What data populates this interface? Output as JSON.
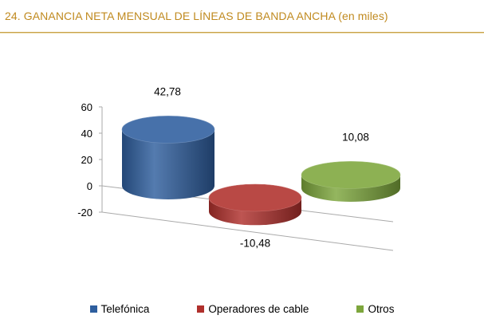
{
  "title": "24. GANANCIA NETA MENSUAL DE LÍNEAS DE BANDA ANCHA (en miles)",
  "colors": {
    "title": "#c08a1f",
    "rule": "#c9a24a"
  },
  "chart_data": {
    "type": "bar",
    "style": "3d-cylinder",
    "categories": [
      "Telefónica",
      "Operadores de cable",
      "Otros"
    ],
    "values": [
      42.78,
      -10.48,
      10.08
    ],
    "data_labels": [
      "42,78",
      "-10,48",
      "10,08"
    ],
    "colors": [
      "#2e5e9e",
      "#b0302c",
      "#7da63c"
    ],
    "yticks": [
      "60",
      "40",
      "20",
      "0",
      "-20"
    ],
    "ylim": [
      -20,
      60
    ],
    "grid": false,
    "legend": {
      "position": "bottom",
      "entries": [
        "Telefónica",
        "Operadores de cable",
        "Otros"
      ]
    }
  }
}
